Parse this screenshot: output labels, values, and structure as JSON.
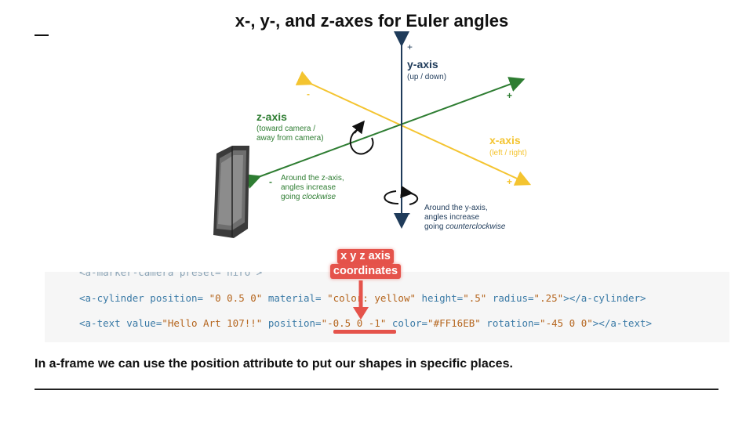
{
  "diagram": {
    "title": "x-, y-, and z-axes for Euler angles",
    "y_axis": {
      "label": "y-axis",
      "sub": "(up / down)",
      "plus": "+",
      "minus": "-",
      "rotation_lines": [
        "Around the y-axis,",
        "angles increase"
      ],
      "rotation_prefix": "going ",
      "rotation_dir": "counterclockwise"
    },
    "x_axis": {
      "label": "x-axis",
      "sub": "(left / right)",
      "plus": "+",
      "minus": "-"
    },
    "z_axis": {
      "label": "z-axis",
      "sub_lines": [
        "(toward camera /",
        "away from camera)"
      ],
      "plus": "+",
      "minus": "-",
      "rotation_lines": [
        "Around the z-axis,",
        "angles increase"
      ],
      "rotation_prefix": "going ",
      "rotation_dir": "clockwise"
    },
    "colors": {
      "y": "#1f3b5a",
      "x": "#f4c430",
      "z": "#2e7d32"
    },
    "phone_icon": "smartphone-icon"
  },
  "code": {
    "line0": "<a-marker-camera preset='hiro'>",
    "line1": {
      "open": "<a-cylinder position= ",
      "pos": "\"0 0.5 0\"",
      "mat_attr": " material= ",
      "mat": "\"color: yellow\"",
      "h_attr": " height=",
      "h": "\".5\"",
      "r_attr": " radius=",
      "r": "\".25\"",
      "close": "></a-cylinder>"
    },
    "line2": {
      "open": "<a-text value=",
      "val": "\"Hello Art 107!!\"",
      "pos_attr": " position=",
      "pos": "\"-0.5 0 -1\"",
      "col_attr": " color=",
      "col": "\"#FF16EB\"",
      "rot_attr": " rotation=",
      "rot": "\"-45 0 0\"",
      "close": "></a-text>"
    }
  },
  "callout": {
    "line1": "x y z axis",
    "line2": "coordinates"
  },
  "caption": "In a-frame we can use the position attribute to put our shapes in specific places."
}
